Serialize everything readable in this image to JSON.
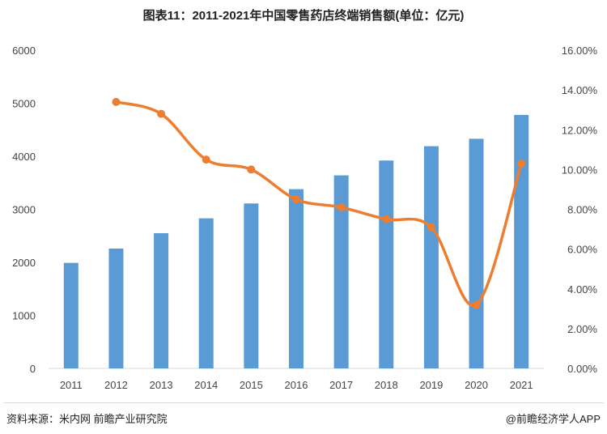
{
  "title": "图表11：2011-2021年中国零售药店终端销售额(单位：亿元)",
  "footer": {
    "source": "资料来源：米内网 前瞻产业研究院",
    "brand": "@前瞻经济学人APP"
  },
  "colors": {
    "bar": "#5b9bd5",
    "line": "#ed7d31",
    "axis": "#d9d9d9"
  },
  "chart_data": {
    "type": "bar",
    "categories": [
      "2011",
      "2012",
      "2013",
      "2014",
      "2015",
      "2016",
      "2017",
      "2018",
      "2019",
      "2020",
      "2021"
    ],
    "series": [
      {
        "type": "bar",
        "axis": "left",
        "values": [
          1990,
          2260,
          2550,
          2830,
          3110,
          3380,
          3640,
          3920,
          4190,
          4330,
          4780
        ]
      },
      {
        "type": "line",
        "axis": "right",
        "smooth": true,
        "values": [
          null,
          13.4,
          12.8,
          10.5,
          10.0,
          8.5,
          8.1,
          7.5,
          7.1,
          3.2,
          10.3
        ]
      }
    ],
    "yleft": {
      "min": 0,
      "max": 6000,
      "ticks": [
        "0",
        "1000",
        "2000",
        "3000",
        "4000",
        "5000",
        "6000"
      ]
    },
    "yright": {
      "min": 0,
      "max": 16,
      "ticks": [
        "0.00%",
        "2.00%",
        "4.00%",
        "6.00%",
        "8.00%",
        "10.00%",
        "12.00%",
        "14.00%",
        "16.00%"
      ]
    },
    "grid": false,
    "legend": "none"
  }
}
